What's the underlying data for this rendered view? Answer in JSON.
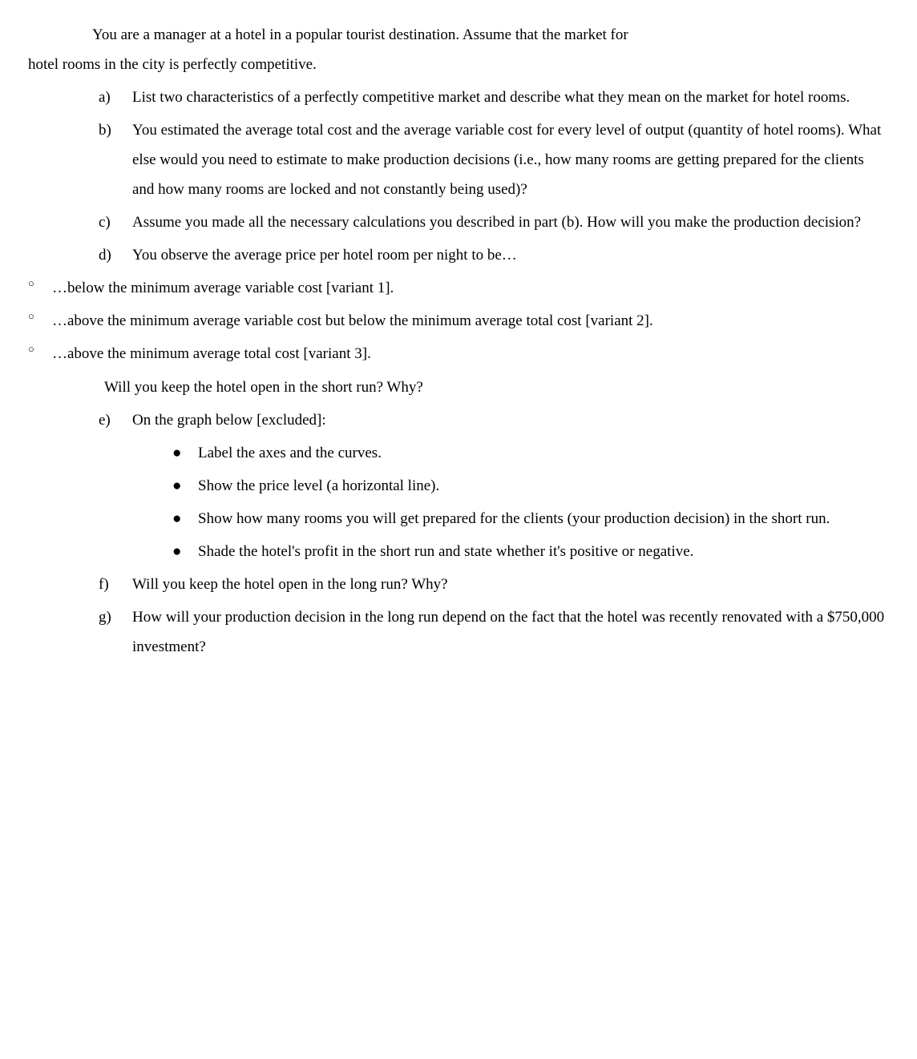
{
  "intro": {
    "line1": "You are a manager at a hotel in a popular tourist destination. Assume that the market for",
    "line2": "hotel rooms in the city is perfectly competitive."
  },
  "items": {
    "a": {
      "marker": "a)",
      "text": "List two characteristics of a perfectly competitive market and describe what they mean on the market for hotel rooms."
    },
    "b": {
      "marker": "b)",
      "text": "You estimated the average total cost and the average variable cost for every level of output (quantity of hotel rooms). What else would you need to estimate to make production decisions (i.e., how many rooms are getting prepared for the clients and how many rooms are locked and not constantly being used)?"
    },
    "c": {
      "marker": "c)",
      "text": "Assume you made all the necessary calculations you described in part (b). How will you make the production decision?"
    },
    "d": {
      "marker": "d)",
      "text": "You observe the average price per hotel room per night to be…"
    },
    "e": {
      "marker": "e)",
      "text": "On the graph below [excluded]:"
    },
    "f": {
      "marker": "f)",
      "text": "Will you keep the hotel open in the long run? Why?"
    },
    "g": {
      "marker": "g)",
      "text": "How will your production decision in the long run depend on the fact that the hotel was recently renovated with a $750,000 investment?"
    }
  },
  "variants": {
    "v1": "…below the minimum average variable cost [variant 1].",
    "v2": "…above the minimum average variable cost but below the minimum average total cost [variant 2].",
    "v3": "…above the minimum average total cost [variant 3]."
  },
  "followup_d": "Will you keep the hotel open in the short run? Why?",
  "bullets": {
    "b1": "Label the axes and the curves.",
    "b2": "Show the price level (a horizontal line).",
    "b3": "Show how many rooms you will get prepared for the clients (your production decision) in the short run.",
    "b4": "Shade the hotel's profit in the short run and state whether it's positive or negative."
  },
  "markers": {
    "circle": "○",
    "bullet": "●"
  }
}
